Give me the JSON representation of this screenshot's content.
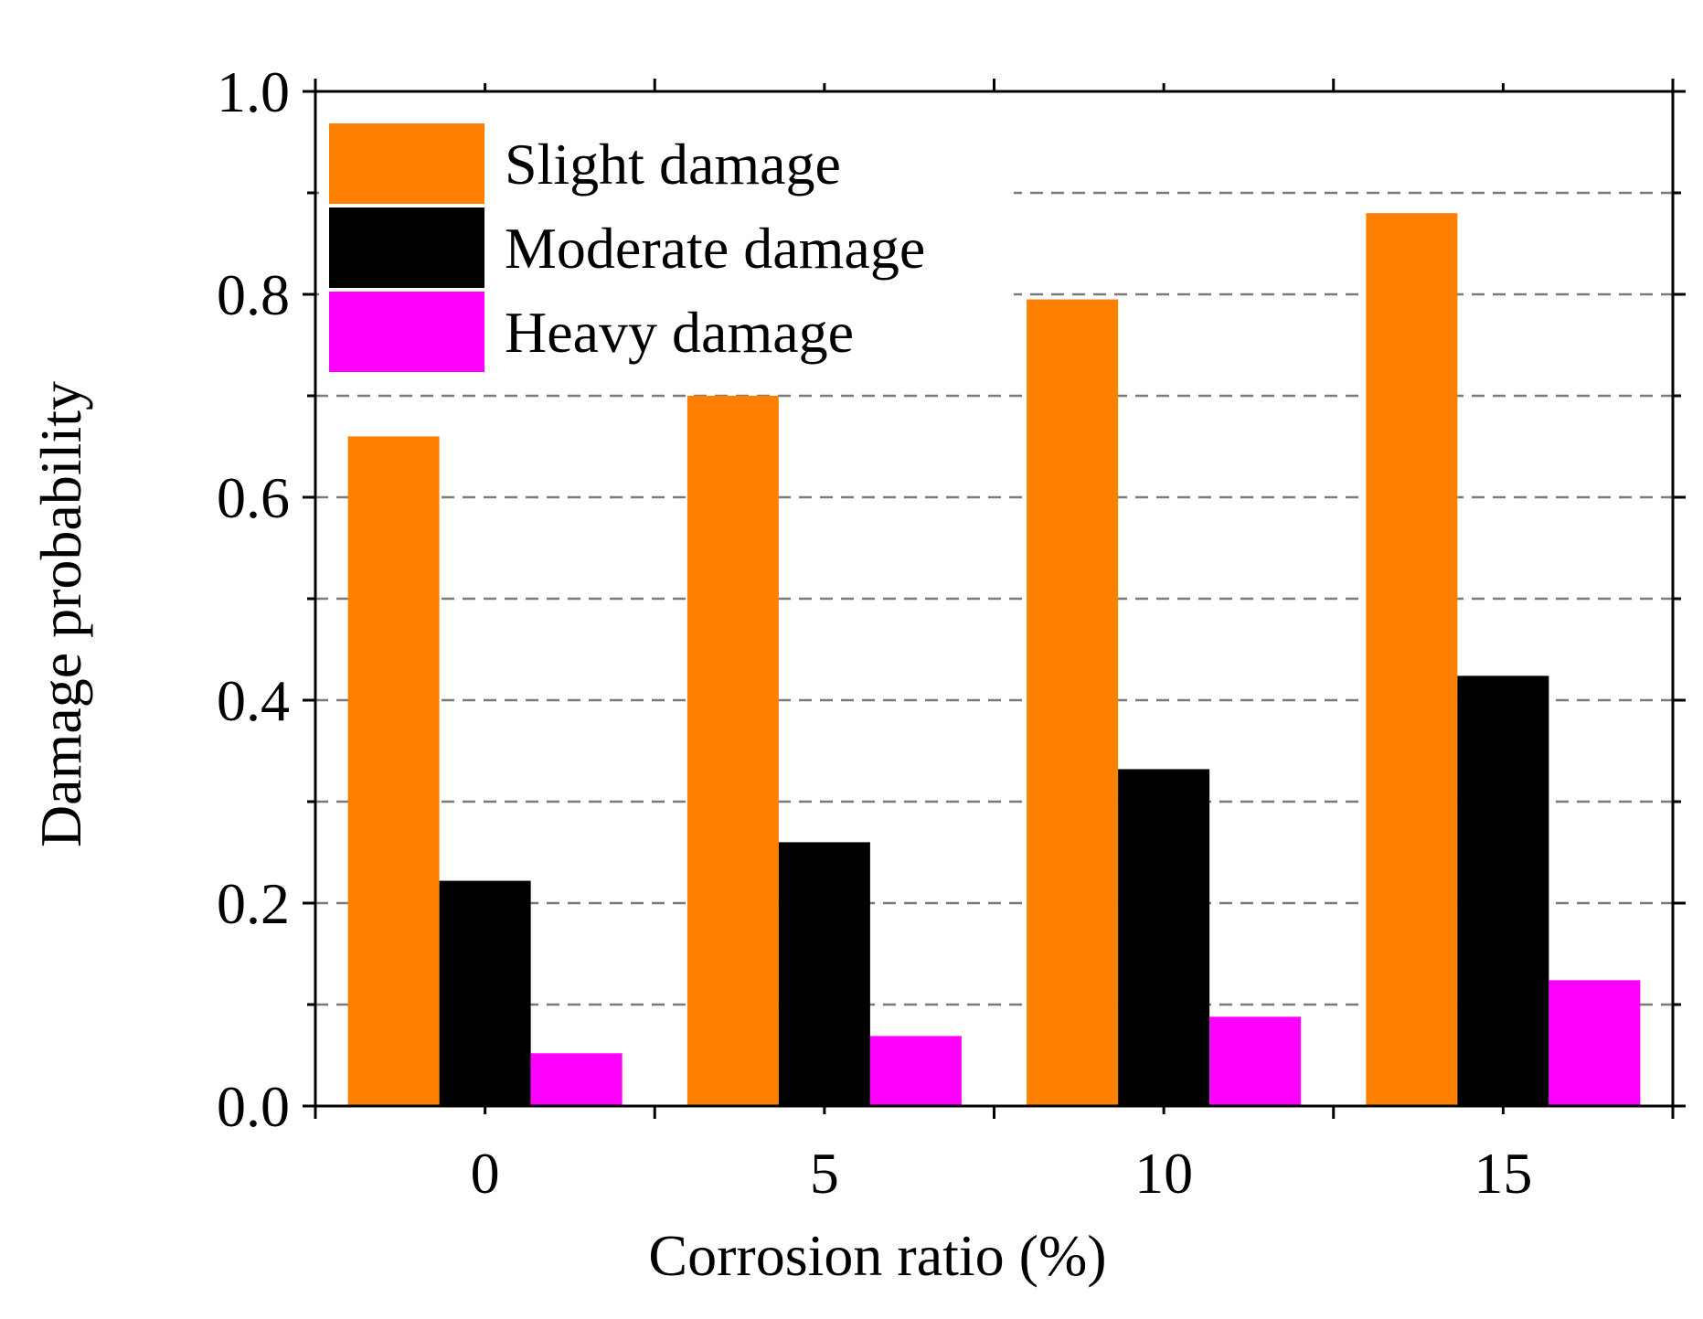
{
  "chart_data": {
    "type": "bar",
    "title": "",
    "xlabel": "Corrosion ratio (%)",
    "ylabel": "Damage probability",
    "categories": [
      "0",
      "5",
      "10",
      "15"
    ],
    "ylim": [
      0,
      1.0
    ],
    "yticks": [
      "0.0",
      "0.2",
      "0.4",
      "0.6",
      "0.8",
      "1.0"
    ],
    "grid": "dashed horizontal at every 0.1",
    "legend_position": "top-left",
    "series": [
      {
        "name": "Slight damage",
        "color": "#ff8000",
        "values": [
          0.66,
          0.7,
          0.795,
          0.88
        ]
      },
      {
        "name": "Moderate damage",
        "color": "#000000",
        "values": [
          0.222,
          0.26,
          0.332,
          0.424
        ]
      },
      {
        "name": "Heavy damage",
        "color": "#ff00ff",
        "values": [
          0.052,
          0.069,
          0.088,
          0.124
        ]
      }
    ]
  }
}
